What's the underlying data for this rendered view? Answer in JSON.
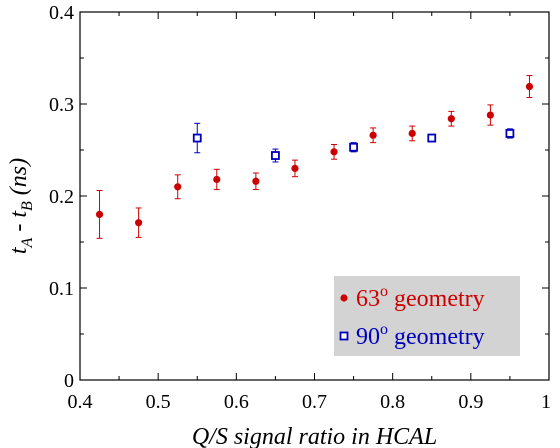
{
  "chart_data": {
    "type": "scatter",
    "xlabel": "Q/S signal ratio in HCAL",
    "ylabel": {
      "main": "t",
      "sub_a": "A",
      "mid": " - t",
      "sub_b": "B",
      "unit": " (ns)"
    },
    "xlim": [
      0.4,
      1.0
    ],
    "ylim": [
      0.0,
      0.4
    ],
    "x_ticks": [
      "0.4",
      "0.5",
      "0.6",
      "0.7",
      "0.8",
      "0.9",
      "1"
    ],
    "y_ticks": [
      "0",
      "0.1",
      "0.2",
      "0.3",
      "0.4"
    ],
    "x_tick_values": [
      0.4,
      0.5,
      0.6,
      0.7,
      0.8,
      0.9,
      1.0
    ],
    "y_tick_values": [
      0.0,
      0.1,
      0.2,
      0.3,
      0.4
    ],
    "grid": false,
    "legend_position": "bottom-right",
    "series": [
      {
        "name": "63",
        "sup": "o",
        "suffix": " geometry",
        "color": "#cc0000",
        "marker": "filled-circle",
        "points": [
          {
            "x": 0.425,
            "y": 0.18,
            "err": 0.026
          },
          {
            "x": 0.475,
            "y": 0.171,
            "err": 0.016
          },
          {
            "x": 0.525,
            "y": 0.21,
            "err": 0.013
          },
          {
            "x": 0.575,
            "y": 0.218,
            "err": 0.011
          },
          {
            "x": 0.625,
            "y": 0.216,
            "err": 0.009
          },
          {
            "x": 0.675,
            "y": 0.23,
            "err": 0.009
          },
          {
            "x": 0.725,
            "y": 0.248,
            "err": 0.008
          },
          {
            "x": 0.775,
            "y": 0.266,
            "err": 0.008
          },
          {
            "x": 0.825,
            "y": 0.268,
            "err": 0.008
          },
          {
            "x": 0.875,
            "y": 0.284,
            "err": 0.008
          },
          {
            "x": 0.925,
            "y": 0.288,
            "err": 0.011
          },
          {
            "x": 0.975,
            "y": 0.319,
            "err": 0.012
          }
        ]
      },
      {
        "name": "90",
        "sup": "o",
        "suffix": " geometry",
        "color": "#0000bb",
        "marker": "open-square",
        "points": [
          {
            "x": 0.55,
            "y": 0.263,
            "err": 0.016
          },
          {
            "x": 0.65,
            "y": 0.244,
            "err": 0.007
          },
          {
            "x": 0.75,
            "y": 0.253,
            "err": 0.005
          },
          {
            "x": 0.85,
            "y": 0.263,
            "err": 0.004
          },
          {
            "x": 0.95,
            "y": 0.268,
            "err": 0.005
          }
        ]
      }
    ],
    "legend_box_color": "#d3d3d3"
  }
}
